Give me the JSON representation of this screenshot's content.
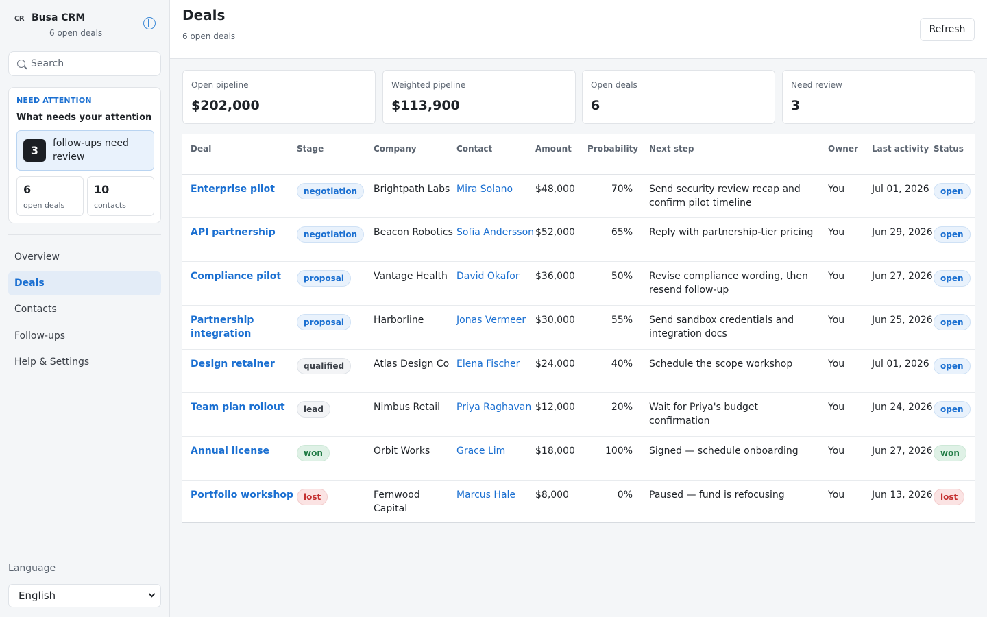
{
  "brand": {
    "mark": "CR",
    "name": "Busa CRM",
    "subtitle": "6 open deals"
  },
  "search": {
    "placeholder": "Search"
  },
  "attention": {
    "eyebrow": "NEED ATTENTION",
    "title": "What needs your attention",
    "followups_count": "3",
    "followups_label": "follow-ups need review",
    "stats": [
      {
        "value": "6",
        "label": "open deals"
      },
      {
        "value": "10",
        "label": "contacts"
      }
    ]
  },
  "nav": {
    "items": [
      {
        "label": "Overview"
      },
      {
        "label": "Deals"
      },
      {
        "label": "Contacts"
      },
      {
        "label": "Follow-ups"
      },
      {
        "label": "Help & Settings"
      }
    ]
  },
  "language": {
    "label": "Language",
    "selected": "English"
  },
  "header": {
    "title": "Deals",
    "subtitle": "6 open deals",
    "refresh_label": "Refresh"
  },
  "stats": [
    {
      "label": "Open pipeline",
      "value": "$202,000"
    },
    {
      "label": "Weighted pipeline",
      "value": "$113,900"
    },
    {
      "label": "Open deals",
      "value": "6"
    },
    {
      "label": "Need review",
      "value": "3"
    }
  ],
  "table": {
    "headers": {
      "deal": "Deal",
      "stage": "Stage",
      "company": "Company",
      "contact": "Contact",
      "amount": "Amount",
      "probability": "Probability",
      "next_step": "Next step",
      "owner": "Owner",
      "last_activity": "Last activity",
      "status": "Status"
    },
    "rows": [
      {
        "deal": "Enterprise pilot",
        "stage": "negotiation",
        "company": "Brightpath Labs",
        "contact": "Mira Solano",
        "amount": "$48,000",
        "probability": "70%",
        "next_step": "Send security review recap and confirm pilot timeline",
        "owner": "You",
        "last_activity": "Jul 01, 2026",
        "status": "open"
      },
      {
        "deal": "API partnership",
        "stage": "negotiation",
        "company": "Beacon Robotics",
        "contact": "Sofia Andersson",
        "amount": "$52,000",
        "probability": "65%",
        "next_step": "Reply with partnership-tier pricing",
        "owner": "You",
        "last_activity": "Jun 29, 2026",
        "status": "open"
      },
      {
        "deal": "Compliance pilot",
        "stage": "proposal",
        "company": "Vantage Health",
        "contact": "David Okafor",
        "amount": "$36,000",
        "probability": "50%",
        "next_step": "Revise compliance wording, then resend follow-up",
        "owner": "You",
        "last_activity": "Jun 27, 2026",
        "status": "open"
      },
      {
        "deal": "Partnership integration",
        "stage": "proposal",
        "company": "Harborline",
        "contact": "Jonas Vermeer",
        "amount": "$30,000",
        "probability": "55%",
        "next_step": "Send sandbox credentials and integration docs",
        "owner": "You",
        "last_activity": "Jun 25, 2026",
        "status": "open"
      },
      {
        "deal": "Design retainer",
        "stage": "qualified",
        "company": "Atlas Design Co",
        "contact": "Elena Fischer",
        "amount": "$24,000",
        "probability": "40%",
        "next_step": "Schedule the scope workshop",
        "owner": "You",
        "last_activity": "Jul 01, 2026",
        "status": "open"
      },
      {
        "deal": "Team plan rollout",
        "stage": "lead",
        "company": "Nimbus Retail",
        "contact": "Priya Raghavan",
        "amount": "$12,000",
        "probability": "20%",
        "next_step": "Wait for Priya's budget confirmation",
        "owner": "You",
        "last_activity": "Jun 24, 2026",
        "status": "open"
      },
      {
        "deal": "Annual license",
        "stage": "won",
        "company": "Orbit Works",
        "contact": "Grace Lim",
        "amount": "$18,000",
        "probability": "100%",
        "next_step": "Signed — schedule onboarding",
        "owner": "You",
        "last_activity": "Jun 27, 2026",
        "status": "won"
      },
      {
        "deal": "Portfolio workshop",
        "stage": "lost",
        "company": "Fernwood Capital",
        "contact": "Marcus Hale",
        "amount": "$8,000",
        "probability": "0%",
        "next_step": "Paused — fund is refocusing",
        "owner": "You",
        "last_activity": "Jun 13, 2026",
        "status": "lost"
      }
    ]
  },
  "colors": {
    "accent": "#1a6fd1",
    "won": "#1f7a44",
    "lost": "#c43030",
    "neutral": "#3b4048"
  },
  "icons": {
    "sidebar_toggle": "sidebar-toggle-icon",
    "search": "search-icon",
    "language_dropdown": "chevron-down-icon"
  }
}
